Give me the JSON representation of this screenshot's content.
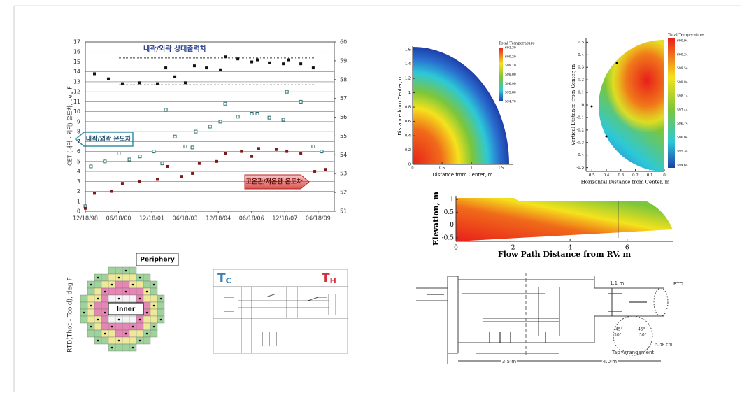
{
  "chart_data": [
    {
      "type": "scatter",
      "y_label": "CET (내곽 - 외곽) 온도차, deg F",
      "y2_label": "RTD(Thot - Tcold), deg F",
      "annotations": [
        "내곽/외곽 상대출력차",
        "내곽/외곽 온도차",
        "고온관/저온관 온도차"
      ],
      "xlim": [
        1998.96,
        2010.19
      ],
      "xticks": [
        {
          "value": 1998.96,
          "label": "12/18/98"
        },
        {
          "value": 2000.46,
          "label": "06/18/00"
        },
        {
          "value": 2001.96,
          "label": "12/18/01"
        },
        {
          "value": 2003.46,
          "label": "06/18/03"
        },
        {
          "value": 2004.96,
          "label": "12/18/04"
        },
        {
          "value": 2006.46,
          "label": "06/18/06"
        },
        {
          "value": 2007.96,
          "label": "12/18/07"
        },
        {
          "value": 2009.46,
          "label": "06/18/09"
        }
      ],
      "ylim": [
        0,
        17
      ],
      "yticks": [
        0,
        1,
        2,
        3,
        4,
        5,
        6,
        7,
        8,
        9,
        10,
        11,
        12,
        13,
        14,
        15,
        16,
        17
      ],
      "y2lim": [
        51,
        60
      ],
      "y2ticks": [
        51,
        52,
        53,
        54,
        55,
        56,
        57,
        58,
        59,
        60
      ],
      "grid": true,
      "hlines": [
        59.15,
        57.72
      ],
      "series": [
        {
          "color": "#111111",
          "axis": "y2",
          "marker": "filled",
          "x": [
            1999.37,
            2000.0,
            2000.63,
            2001.42,
            2002.21,
            2002.59,
            2003.0,
            2003.47,
            2003.88,
            2004.42,
            2005.05,
            2005.27,
            2005.84,
            2006.47,
            2006.72,
            2007.26,
            2007.89,
            2008.11,
            2008.68,
            2009.24
          ],
          "values": [
            58.31,
            58.04,
            57.78,
            57.83,
            57.78,
            58.62,
            58.15,
            57.83,
            58.73,
            58.62,
            58.52,
            59.21,
            59.1,
            58.94,
            59.05,
            58.89,
            58.84,
            59.05,
            58.84,
            58.62
          ]
        },
        {
          "color": "#2f6b6b",
          "marker": "hollow",
          "x": [
            1998.96,
            1999.21,
            1999.84,
            2000.47,
            2000.95,
            2001.42,
            2002.05,
            2002.43,
            2002.59,
            2003.0,
            2003.47,
            2003.79,
            2003.94,
            2004.58,
            2005.05,
            2005.27,
            2005.84,
            2006.47,
            2006.72,
            2007.26,
            2007.89,
            2008.05,
            2008.68,
            2009.24,
            2009.62
          ],
          "values": [
            0.5,
            4.5,
            5.0,
            5.8,
            5.2,
            5.5,
            6.0,
            4.8,
            10.2,
            7.5,
            6.5,
            6.4,
            8.0,
            8.5,
            9.0,
            10.8,
            9.5,
            9.8,
            9.8,
            9.4,
            9.2,
            12.0,
            11.0,
            6.5,
            6.0
          ]
        },
        {
          "color": "#7a1a1a",
          "marker": "filled",
          "x": [
            1998.96,
            1999.37,
            2000.16,
            2000.63,
            2001.42,
            2002.21,
            2002.68,
            2003.31,
            2003.79,
            2004.1,
            2004.89,
            2005.27,
            2006.0,
            2006.47,
            2006.78,
            2007.57,
            2008.05,
            2008.68,
            2009.31,
            2009.78
          ],
          "values": [
            0.3,
            1.8,
            2.0,
            2.8,
            3.0,
            3.2,
            4.5,
            3.5,
            3.8,
            4.8,
            5.0,
            5.8,
            6.0,
            5.5,
            6.3,
            6.2,
            6.0,
            5.8,
            4.0,
            4.2
          ]
        }
      ]
    },
    {
      "type": "contour",
      "title": "Total Temperature",
      "x_label": "Distance from Center, m",
      "y_label": "Distance from Center, m",
      "xlim": [
        0,
        1.7
      ],
      "xticks": [
        0,
        0.5,
        1,
        1.5
      ],
      "ylim": [
        0,
        1.65
      ],
      "yticks": [
        0,
        0.2,
        0.4,
        0.6,
        0.8,
        1,
        1.2,
        1.4,
        1.6
      ],
      "colorbar_ticks": [
        {
          "value": 601.3,
          "label": "601.30"
        },
        {
          "value": 600.2,
          "label": "600.20"
        },
        {
          "value": 599.1,
          "label": "599.10"
        },
        {
          "value": 598.0,
          "label": "598.00"
        },
        {
          "value": 596.9,
          "label": "596.90"
        },
        {
          "value": 595.8,
          "label": "595.80"
        },
        {
          "value": 594.7,
          "label": "594.70"
        }
      ]
    },
    {
      "type": "contour",
      "title": "Total Temperature",
      "x_label": "Horizontal Distance from Center, m",
      "y_label": "Vertical Distance from Center, m",
      "xlim": [
        0.54,
        0
      ],
      "xticks": [
        0.5,
        0.4,
        0.3,
        0.2,
        0.1,
        0
      ],
      "ylim": [
        -0.53,
        0.53
      ],
      "yticks": [
        -0.5,
        -0.4,
        -0.3,
        -0.2,
        -0.1,
        0,
        0.1,
        0.2,
        0.3,
        0.4,
        0.5
      ],
      "colorbar_ticks": [
        {
          "value": 600.94,
          "label": "600.94"
        },
        {
          "value": 600.24,
          "label": "600.24"
        },
        {
          "value": 599.54,
          "label": "599.54"
        },
        {
          "value": 598.84,
          "label": "598.84"
        },
        {
          "value": 598.14,
          "label": "598.14"
        },
        {
          "value": 597.44,
          "label": "597.44"
        },
        {
          "value": 596.74,
          "label": "596.74"
        },
        {
          "value": 596.04,
          "label": "596.04"
        },
        {
          "value": 595.34,
          "label": "595.34"
        },
        {
          "value": 594.64,
          "label": "594.64"
        }
      ]
    },
    {
      "type": "contour",
      "x_label": "Flow Path Distance from RV, m",
      "y_label": "Elevation, m",
      "xlim": [
        0,
        7.6
      ],
      "xticks": [
        0,
        2,
        4,
        6
      ],
      "ylim": [
        -0.64,
        1.14
      ],
      "yticks": [
        -0.5,
        0,
        0.5,
        1
      ]
    }
  ],
  "core_map": {
    "periphery": "Periphery",
    "inner": "Inner"
  },
  "flow_diagram": {
    "t_cold": {
      "main": "T",
      "sub": "C"
    },
    "t_hot": {
      "main": "T",
      "sub": "H"
    }
  },
  "plenum_diagram": {
    "height": "1.1 m",
    "rtd": "RTD",
    "diameter": "5.38 cm",
    "tap": "Tap Arrangement",
    "angle_a": "45°",
    "angle_b": "30°",
    "width_a": "3.5 m",
    "width_b": "4.0 m"
  }
}
